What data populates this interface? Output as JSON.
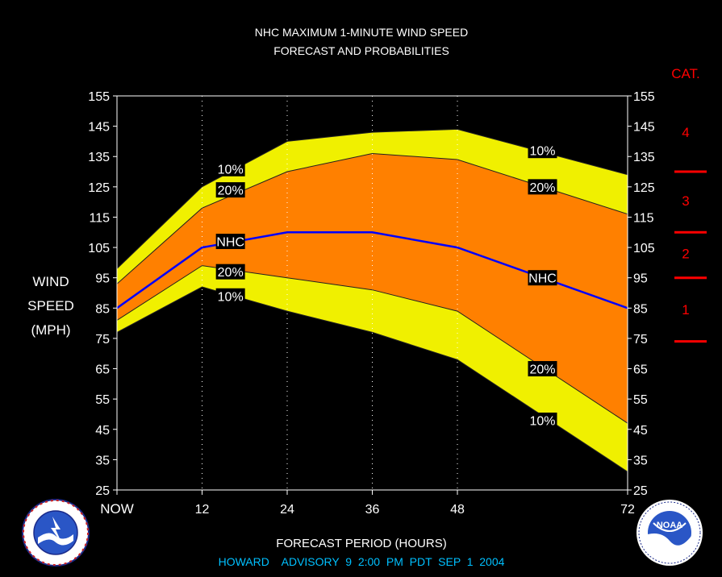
{
  "title_line1": "NHC MAXIMUM 1-MINUTE WIND SPEED",
  "title_line2": "FORECAST AND PROBABILITIES",
  "xlabel": "FORECAST PERIOD (HOURS)",
  "ylabel_lines": [
    "WIND",
    "SPEED",
    "(MPH)"
  ],
  "cat_header": "CAT.",
  "advisory": "HOWARD    ADVISORY  9  2:00  PM  PDT  SEP  1  2004",
  "logos": {
    "left": "NATIONAL WEATHER SERVICE",
    "right": "NOAA",
    "right_ring": "NATIONAL OCEANIC AND ATMOSPHERIC ADMINISTRATION · U.S. DEPARTMENT OF COMMERCE"
  },
  "colors": {
    "background": "#000000",
    "band_10": "#f0f000",
    "band_20": "#ff8000",
    "nhc_line": "#0000ff",
    "category": "#ff0000",
    "advisory_text": "#00c0ff"
  },
  "chart_data": {
    "type": "area",
    "x": [
      0,
      12,
      24,
      36,
      48,
      72
    ],
    "x_tick_labels": [
      "NOW",
      "12",
      "24",
      "36",
      "48",
      "72"
    ],
    "xlim": [
      0,
      72
    ],
    "ylim": [
      25,
      155
    ],
    "y_ticks": [
      25,
      35,
      45,
      55,
      65,
      75,
      85,
      95,
      105,
      115,
      125,
      135,
      145,
      155
    ],
    "grid": "vertical dotted at forecast hours",
    "series": [
      {
        "name": "10%",
        "values": [
          98,
          125,
          140,
          143,
          144,
          129
        ]
      },
      {
        "name": "20%",
        "values": [
          93,
          118,
          130,
          136,
          134,
          116
        ]
      },
      {
        "name": "NHC",
        "values": [
          85,
          105,
          110,
          110,
          105,
          85
        ]
      },
      {
        "name": "20%",
        "values": [
          81,
          99,
          95,
          91,
          84,
          47
        ]
      },
      {
        "name": "10%",
        "values": [
          77,
          92,
          84,
          77,
          68,
          31
        ]
      }
    ],
    "curve_labels": [
      {
        "text": "10%",
        "x": 16,
        "y": 131
      },
      {
        "text": "20%",
        "x": 16,
        "y": 124
      },
      {
        "text": "NHC",
        "x": 16,
        "y": 107
      },
      {
        "text": "20%",
        "x": 16,
        "y": 97
      },
      {
        "text": "10%",
        "x": 16,
        "y": 89
      },
      {
        "text": "10%",
        "x": 60,
        "y": 137
      },
      {
        "text": "20%",
        "x": 60,
        "y": 125
      },
      {
        "text": "NHC",
        "x": 60,
        "y": 95
      },
      {
        "text": "20%",
        "x": 60,
        "y": 65
      },
      {
        "text": "10%",
        "x": 60,
        "y": 48
      }
    ],
    "categories_scale": [
      {
        "label": "4",
        "min": 131,
        "max": 155
      },
      {
        "label": "3",
        "min": 111,
        "max": 130
      },
      {
        "label": "2",
        "min": 96,
        "max": 110
      },
      {
        "label": "1",
        "min": 74,
        "max": 95
      }
    ],
    "category_boundaries": [
      130,
      110,
      95,
      74
    ]
  }
}
